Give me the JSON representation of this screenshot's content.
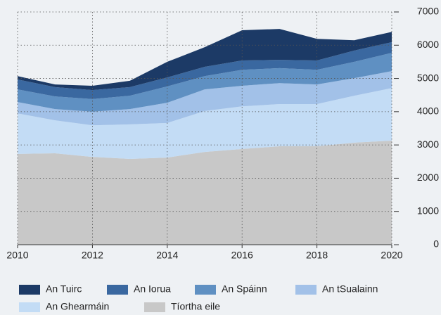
{
  "chart_data": {
    "type": "stacked_area",
    "x": [
      2010,
      2011,
      2012,
      2013,
      2014,
      2015,
      2016,
      2017,
      2018,
      2019,
      2020
    ],
    "series": [
      {
        "name": "An Tuirc",
        "color": "#1c3a66",
        "values": [
          100,
          80,
          130,
          190,
          470,
          590,
          910,
          930,
          650,
          310,
          310
        ]
      },
      {
        "name": "An Iorua",
        "color": "#3a68a0",
        "values": [
          300,
          280,
          270,
          260,
          270,
          280,
          280,
          250,
          280,
          340,
          320
        ]
      },
      {
        "name": "An Spáinn",
        "color": "#5f90c2",
        "values": [
          380,
          380,
          380,
          400,
          490,
          400,
          480,
          450,
          440,
          490,
          550
        ]
      },
      {
        "name": "An tSualainn",
        "color": "#a2c1e8",
        "values": [
          340,
          340,
          410,
          460,
          610,
          650,
          620,
          630,
          590,
          530,
          510
        ]
      },
      {
        "name": "An Ghearmáin",
        "color": "#c3dcf5",
        "values": [
          1220,
          990,
          950,
          1040,
          1040,
          1230,
          1280,
          1270,
          1270,
          1410,
          1580
        ]
      },
      {
        "name": "Tíortha eile",
        "color": "#c8c8c8",
        "values": [
          2730,
          2750,
          2640,
          2580,
          2620,
          2790,
          2880,
          2960,
          2960,
          3070,
          3130
        ]
      }
    ],
    "xlim": [
      2010,
      2020
    ],
    "xticks": [
      2010,
      2012,
      2014,
      2016,
      2018,
      2020
    ],
    "ylim": [
      0,
      7000
    ],
    "yticks": [
      0,
      1000,
      2000,
      3000,
      4000,
      5000,
      6000,
      7000
    ],
    "grid": true,
    "legend": "bottom"
  }
}
